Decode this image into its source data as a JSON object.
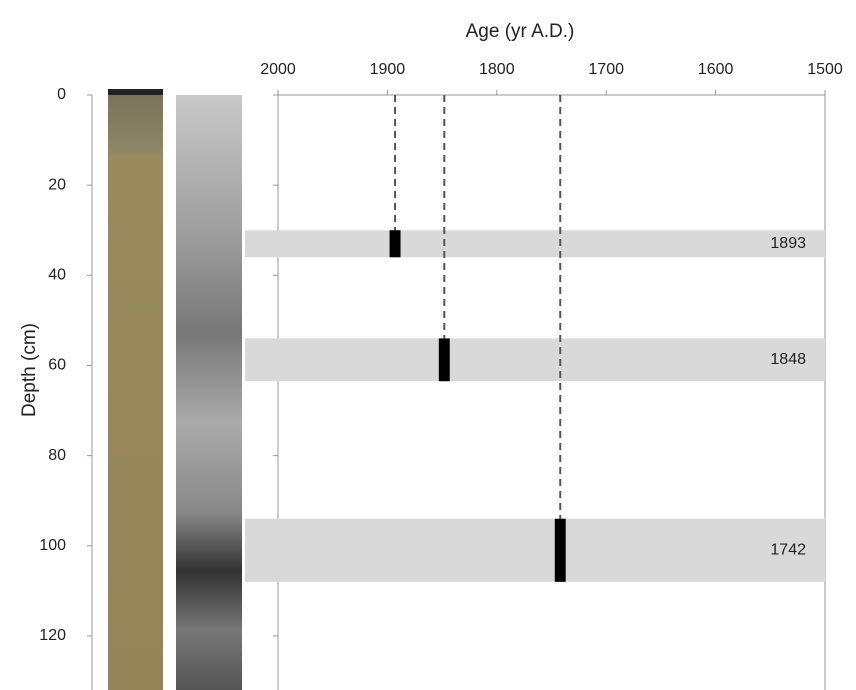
{
  "chart_data": {
    "type": "age-depth",
    "x_label": "Age (yr A.D.)",
    "y_label": "Depth (cm)",
    "xlim": [
      2000,
      1500
    ],
    "xticks": [
      2000,
      1900,
      1800,
      1700,
      1600,
      1500
    ],
    "ylim": [
      0,
      132
    ],
    "yticks": [
      0,
      20,
      40,
      60,
      80,
      100,
      120
    ],
    "band_color": "#d9d9d9",
    "bar_color": "#000000",
    "events": [
      {
        "age": 1893,
        "age_error": 5,
        "depth_top": 30,
        "depth_bottom": 36
      },
      {
        "age": 1848,
        "age_error": 5,
        "depth_top": 54,
        "depth_bottom": 63.5
      },
      {
        "age": 1742,
        "age_error": 5,
        "depth_top": 94,
        "depth_bottom": 108
      }
    ]
  }
}
